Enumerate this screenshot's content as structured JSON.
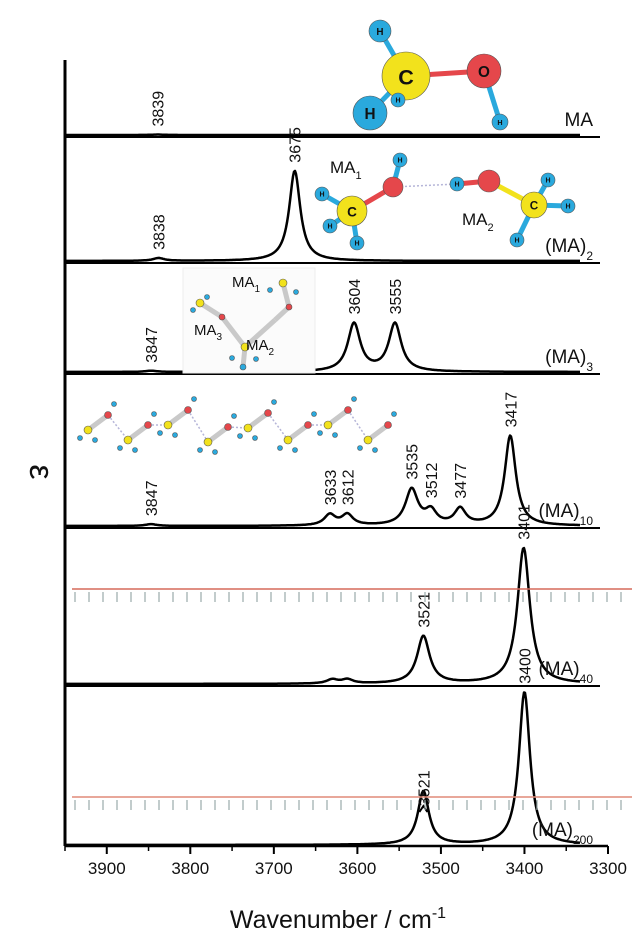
{
  "chart_data": {
    "type": "line",
    "xlabel": "Wavenumber / cm",
    "xlabel_sup": "-1",
    "ylabel": "ε",
    "xlim": [
      3950,
      3300
    ],
    "xticks": [
      "3900",
      "3800",
      "3700",
      "3600",
      "3500",
      "3400",
      "3300"
    ],
    "series": [
      {
        "name": "MA",
        "name_sub": "",
        "peaks": [
          {
            "x": 3839,
            "h": 0.06,
            "w": 8
          }
        ],
        "labels": [
          {
            "text": "3839",
            "x": 3839
          }
        ]
      },
      {
        "name": "(MA)",
        "name_sub": "2",
        "peaks": [
          {
            "x": 3838,
            "h": 0.03,
            "w": 8
          },
          {
            "x": 3675,
            "h": 0.95,
            "w": 8
          }
        ],
        "labels": [
          {
            "text": "3838",
            "x": 3838
          },
          {
            "text": "3675",
            "x": 3675
          }
        ]
      },
      {
        "name": "(MA)",
        "name_sub": "3",
        "peaks": [
          {
            "x": 3847,
            "h": 0.02,
            "w": 8
          },
          {
            "x": 3604,
            "h": 0.8,
            "w": 9
          },
          {
            "x": 3555,
            "h": 0.8,
            "w": 9
          }
        ],
        "labels": [
          {
            "text": "3847",
            "x": 3847
          },
          {
            "text": "3604",
            "x": 3604
          },
          {
            "text": "3555",
            "x": 3555
          }
        ]
      },
      {
        "name": "(MA)",
        "name_sub": "10",
        "peaks": [
          {
            "x": 3847,
            "h": 0.02,
            "w": 8
          },
          {
            "x": 3633,
            "h": 0.12,
            "w": 8
          },
          {
            "x": 3612,
            "h": 0.12,
            "w": 8
          },
          {
            "x": 3535,
            "h": 0.4,
            "w": 9
          },
          {
            "x": 3512,
            "h": 0.15,
            "w": 8
          },
          {
            "x": 3477,
            "h": 0.18,
            "w": 8
          },
          {
            "x": 3417,
            "h": 1.0,
            "w": 8
          }
        ],
        "labels": [
          {
            "text": "3847",
            "x": 3847
          },
          {
            "text": "3633",
            "x": 3633
          },
          {
            "text": "3612",
            "x": 3612
          },
          {
            "text": "3535",
            "x": 3535
          },
          {
            "text": "3512",
            "x": 3512
          },
          {
            "text": "3477",
            "x": 3477
          },
          {
            "text": "3417",
            "x": 3417
          }
        ]
      },
      {
        "name": "(MA)",
        "name_sub": "40",
        "peaks": [
          {
            "x": 3630,
            "h": 0.03,
            "w": 8
          },
          {
            "x": 3612,
            "h": 0.03,
            "w": 8
          },
          {
            "x": 3521,
            "h": 0.35,
            "w": 9
          },
          {
            "x": 3401,
            "h": 1.0,
            "w": 9
          }
        ],
        "labels": [
          {
            "text": "3521",
            "x": 3521
          },
          {
            "text": "3401",
            "x": 3401
          }
        ]
      },
      {
        "name": "(MA)",
        "name_sub": "200",
        "peaks": [
          {
            "x": 3521,
            "h": 0.35,
            "w": 8
          },
          {
            "x": 3400,
            "h": 1.0,
            "w": 8
          }
        ],
        "labels": [
          {
            "text": "3521",
            "x": 3521
          },
          {
            "text": "3400",
            "x": 3400
          }
        ]
      }
    ],
    "insets": [
      {
        "cluster": "MA",
        "labels": [
          {
            "text": "C"
          },
          {
            "text": "O"
          },
          {
            "text": "H"
          },
          {
            "text": "H"
          },
          {
            "text": "H"
          },
          {
            "text": "H"
          }
        ]
      },
      {
        "cluster": "(MA)2",
        "labels": [
          {
            "text": "MA",
            "sub": "1"
          },
          {
            "text": "MA",
            "sub": "2"
          },
          {
            "text": "C"
          },
          {
            "text": "C"
          },
          {
            "text": "H"
          },
          {
            "text": "H"
          },
          {
            "text": "H"
          },
          {
            "text": "H"
          },
          {
            "text": "H"
          },
          {
            "text": "H"
          },
          {
            "text": "H"
          },
          {
            "text": "H"
          }
        ]
      },
      {
        "cluster": "(MA)3",
        "labels": [
          {
            "text": "MA",
            "sub": "1"
          },
          {
            "text": "MA",
            "sub": "2"
          },
          {
            "text": "MA",
            "sub": "3"
          }
        ]
      }
    ],
    "colors": {
      "line": "#000000",
      "carbon": "#f2e21c",
      "oxygen": "#e5474b",
      "hydrogen": "#2aa9dd",
      "bond": "#b5b5d8"
    }
  }
}
